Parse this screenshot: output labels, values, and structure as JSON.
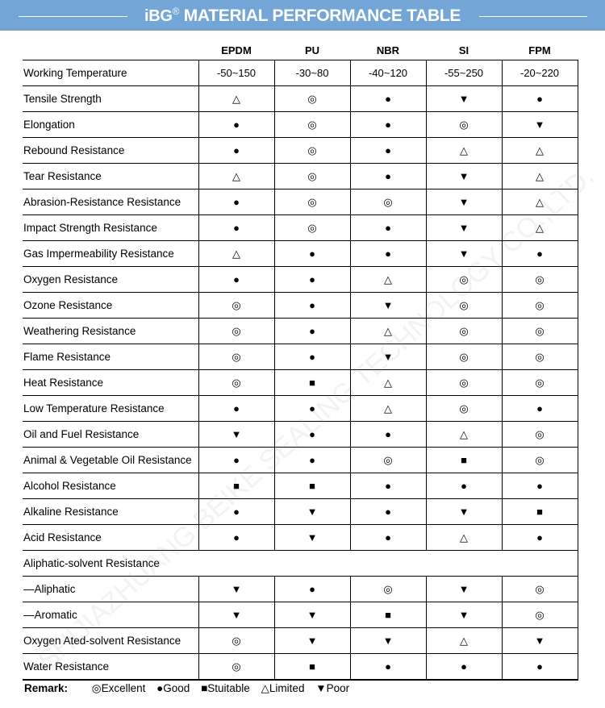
{
  "header": {
    "logo": "iBG",
    "registered": "®",
    "title": "MATERIAL PERFORMANCE TABLE",
    "color": "#73a5d6"
  },
  "watermark": "SHIJIAZHUANG BEIKE SEALING TECHNOLOGY CO.,LTD.",
  "symbols": {
    "E": "◎",
    "G": "●",
    "S": "■",
    "L": "△",
    "P": "▼"
  },
  "table": {
    "columns": [
      "EPDM",
      "PU",
      "NBR",
      "SI",
      "FPM"
    ],
    "rows": [
      {
        "label": "Working Temperature",
        "values": [
          "-50~150",
          "-30~80",
          "-40~120",
          "-55~250",
          "-20~220"
        ]
      },
      {
        "label": "Tensile Strength",
        "values": [
          "△",
          "◎",
          "●",
          "▼",
          "●"
        ]
      },
      {
        "label": "Elongation",
        "values": [
          "●",
          "◎",
          "●",
          "◎",
          "▼"
        ]
      },
      {
        "label": "Rebound Resistance",
        "values": [
          "●",
          "◎",
          "●",
          "△",
          "△"
        ]
      },
      {
        "label": "Tear Resistance",
        "values": [
          "△",
          "◎",
          "●",
          "▼",
          "△"
        ]
      },
      {
        "label": "Abrasion-Resistance Resistance",
        "values": [
          "●",
          "◎",
          "◎",
          "▼",
          "△"
        ]
      },
      {
        "label": "Impact Strength Resistance",
        "values": [
          "●",
          "◎",
          "●",
          "▼",
          "△"
        ]
      },
      {
        "label": "Gas Impermeability Resistance",
        "values": [
          "△",
          "●",
          "●",
          "▼",
          "●"
        ]
      },
      {
        "label": "Oxygen Resistance",
        "values": [
          "●",
          "●",
          "△",
          "◎",
          "◎"
        ]
      },
      {
        "label": "Ozone Resistance",
        "values": [
          "◎",
          "●",
          "▼",
          "◎",
          "◎"
        ]
      },
      {
        "label": "Weathering Resistance",
        "values": [
          "◎",
          "●",
          "△",
          "◎",
          "◎"
        ]
      },
      {
        "label": "Flame Resistance",
        "values": [
          "◎",
          "●",
          "▼",
          "◎",
          "◎"
        ]
      },
      {
        "label": "Heat Resistance",
        "values": [
          "◎",
          "■",
          "△",
          "◎",
          "◎"
        ]
      },
      {
        "label": "Low Temperature Resistance",
        "values": [
          "●",
          "●",
          "△",
          "◎",
          "●"
        ]
      },
      {
        "label": "Oil and Fuel Resistance",
        "values": [
          "▼",
          "●",
          "●",
          "△",
          "◎"
        ]
      },
      {
        "label": "Animal & Vegetable Oil Resistance",
        "values": [
          "●",
          "●",
          "◎",
          "■",
          "◎"
        ]
      },
      {
        "label": "Alcohol Resistance",
        "values": [
          "■",
          "■",
          "●",
          "●",
          "●"
        ]
      },
      {
        "label": "Alkaline Resistance",
        "values": [
          "●",
          "▼",
          "●",
          "▼",
          "■"
        ]
      },
      {
        "label": "Acid Resistance",
        "values": [
          "●",
          "▼",
          "●",
          "△",
          "●"
        ]
      },
      {
        "label": "Aliphatic-solvent Resistance",
        "values": []
      },
      {
        "label": "—Aliphatic",
        "values": [
          "▼",
          "●",
          "◎",
          "▼",
          "◎"
        ]
      },
      {
        "label": "—Aromatic",
        "values": [
          "▼",
          "▼",
          "■",
          "▼",
          "◎"
        ]
      },
      {
        "label": "Oxygen Ated-solvent Resistance",
        "values": [
          "◎",
          "▼",
          "▼",
          "△",
          "▼"
        ]
      },
      {
        "label": "Water Resistance",
        "values": [
          "◎",
          "■",
          "●",
          "●",
          "●"
        ]
      }
    ]
  },
  "remark": {
    "label": "Remark:",
    "items": [
      "◎Excellent",
      "●Good",
      "■Stuitable",
      "△Limited",
      "▼Poor"
    ]
  }
}
